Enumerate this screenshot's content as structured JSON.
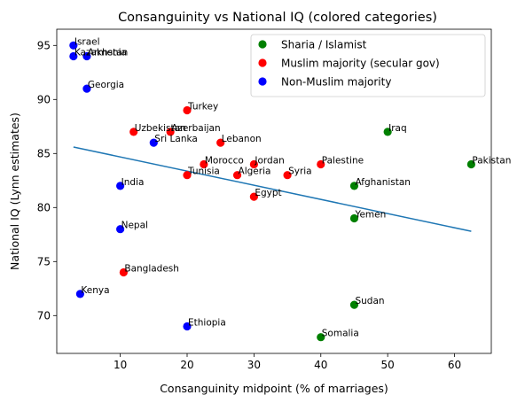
{
  "chart_data": {
    "type": "scatter",
    "title": "Consanguinity vs National IQ (colored categories)",
    "xlabel": "Consanguinity midpoint (% of marriages)",
    "ylabel": "National IQ (Lynn estimates)",
    "xlim": [
      0.5,
      65.5
    ],
    "ylim": [
      66.5,
      96.5
    ],
    "xticks": [
      10,
      20,
      30,
      40,
      50,
      60
    ],
    "yticks": [
      70,
      75,
      80,
      85,
      90,
      95
    ],
    "grid": false,
    "legend_position": "top-right",
    "trendline": {
      "x": [
        3,
        62.5
      ],
      "y": [
        85.6,
        77.8
      ],
      "color": "#1f77b4"
    },
    "series": [
      {
        "name": "Sharia / Islamist",
        "color": "#008000",
        "points": [
          {
            "label": "Iraq",
            "x": 50,
            "y": 87
          },
          {
            "label": "Pakistan",
            "x": 62.5,
            "y": 84
          },
          {
            "label": "Afghanistan",
            "x": 45,
            "y": 82
          },
          {
            "label": "Yemen",
            "x": 45,
            "y": 79
          },
          {
            "label": "Sudan",
            "x": 45,
            "y": 71
          },
          {
            "label": "Somalia",
            "x": 40,
            "y": 68
          }
        ]
      },
      {
        "name": "Muslim majority (secular gov)",
        "color": "#ff0000",
        "points": [
          {
            "label": "Turkey",
            "x": 20,
            "y": 89
          },
          {
            "label": "Uzbekistan",
            "x": 12,
            "y": 87
          },
          {
            "label": "Azerbaijan",
            "x": 17.5,
            "y": 87
          },
          {
            "label": "Lebanon",
            "x": 25,
            "y": 86
          },
          {
            "label": "Morocco",
            "x": 22.5,
            "y": 84
          },
          {
            "label": "Jordan",
            "x": 30,
            "y": 84
          },
          {
            "label": "Palestine",
            "x": 40,
            "y": 84
          },
          {
            "label": "Tunisia",
            "x": 20,
            "y": 83
          },
          {
            "label": "Algeria",
            "x": 27.5,
            "y": 83
          },
          {
            "label": "Syria",
            "x": 35,
            "y": 83
          },
          {
            "label": "Egypt",
            "x": 30,
            "y": 81
          },
          {
            "label": "Bangladesh",
            "x": 10.5,
            "y": 74
          }
        ]
      },
      {
        "name": "Non-Muslim majority",
        "color": "#0000ff",
        "points": [
          {
            "label": "Israel",
            "x": 3,
            "y": 95
          },
          {
            "label": "Kazakhstan",
            "x": 3,
            "y": 94
          },
          {
            "label": "Armenia",
            "x": 5,
            "y": 94
          },
          {
            "label": "Georgia",
            "x": 5,
            "y": 91
          },
          {
            "label": "Sri Lanka",
            "x": 15,
            "y": 86
          },
          {
            "label": "India",
            "x": 10,
            "y": 82
          },
          {
            "label": "Nepal",
            "x": 10,
            "y": 78
          },
          {
            "label": "Kenya",
            "x": 4,
            "y": 72
          },
          {
            "label": "Ethiopia",
            "x": 20,
            "y": 69
          }
        ]
      }
    ]
  }
}
